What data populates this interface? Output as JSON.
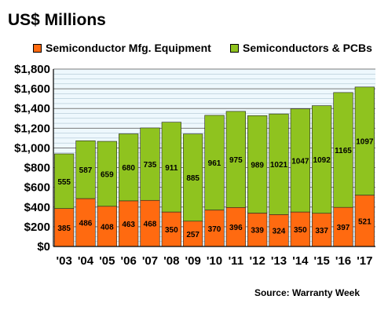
{
  "header": {
    "units_title": "US$ Millions"
  },
  "footer": {
    "source": "Source: Warranty Week"
  },
  "colors": {
    "equipment": "#ff6a10",
    "semiconductors": "#8fc31f",
    "plot_background": "#eef8fd",
    "gridline": "#7a7a7a"
  },
  "chart_data": {
    "type": "bar",
    "stacked": true,
    "categories": [
      "'03",
      "'04",
      "'05",
      "'06",
      "'07",
      "'08",
      "'09",
      "'10",
      "'11",
      "'12",
      "'13",
      "'14",
      "'15",
      "'16",
      "'17"
    ],
    "series": [
      {
        "name": "Semiconductor Mfg. Equipment",
        "color": "#ff6a10",
        "values": [
          385,
          486,
          408,
          463,
          468,
          350,
          257,
          370,
          396,
          339,
          324,
          350,
          337,
          397,
          521
        ]
      },
      {
        "name": "Semiconductors & PCBs",
        "color": "#8fc31f",
        "values": [
          555,
          587,
          659,
          680,
          735,
          911,
          885,
          961,
          975,
          989,
          1021,
          1047,
          1092,
          1165,
          1097
        ]
      }
    ],
    "ylim": [
      0,
      1800
    ],
    "yticks": [
      0,
      200,
      400,
      600,
      800,
      1000,
      1200,
      1400,
      1600,
      1800
    ],
    "ytick_labels": [
      "$0",
      "$200",
      "$400",
      "$600",
      "$800",
      "$1,000",
      "$1,200",
      "$1,400",
      "$1,600",
      "$1,800"
    ],
    "grid": true,
    "legend_position": "top",
    "data_labels": true
  }
}
